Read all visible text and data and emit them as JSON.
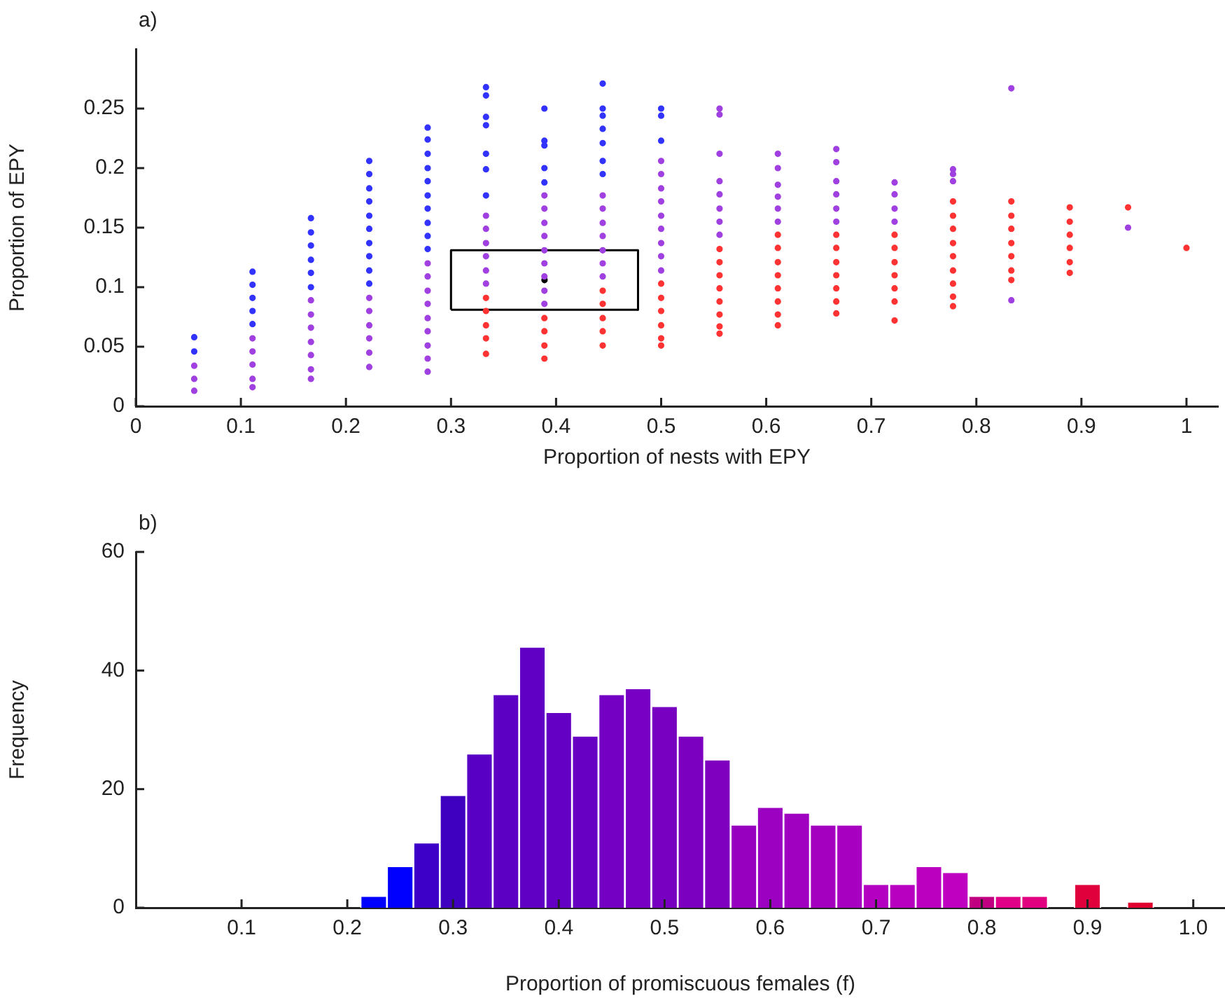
{
  "chart_data": [
    {
      "type": "scatter",
      "xlabel": "Proportion of nests with EPY",
      "ylabel": "Proportion of EPY",
      "annotations": [
        "a)"
      ],
      "xlim": [
        0,
        1.03
      ],
      "xticks": [
        0,
        0.1,
        0.2,
        0.3,
        0.4,
        0.5,
        0.6,
        0.7,
        0.8,
        0.9,
        1
      ],
      "ylim": [
        0,
        0.3
      ],
      "yticks": [
        0,
        0.05,
        0.1,
        0.15,
        0.2,
        0.25
      ],
      "grid": false,
      "legend": false,
      "marker": "circle",
      "series": [
        {
          "color": "#3333ff",
          "x": [
            0.0556,
            0.0556,
            0.1111,
            0.1111,
            0.1111,
            0.1111,
            0.1111,
            0.1667,
            0.1667,
            0.1667,
            0.1667,
            0.1667,
            0.1667,
            0.2222,
            0.2222,
            0.2222,
            0.2222,
            0.2222,
            0.2222,
            0.2222,
            0.2222,
            0.2222,
            0.2222,
            0.2778,
            0.2778,
            0.2778,
            0.2778,
            0.2778,
            0.2778,
            0.2778,
            0.2778,
            0.2778,
            0.2778,
            0.3333,
            0.3333,
            0.3333,
            0.3333,
            0.3333,
            0.3333,
            0.3333,
            0.3889,
            0.3889,
            0.3889,
            0.3889,
            0.3889,
            0.4444,
            0.4444,
            0.4444,
            0.4444,
            0.4444,
            0.4444,
            0.4444,
            0.5,
            0.5,
            0.5
          ],
          "values": [
            0.058,
            0.046,
            0.113,
            0.102,
            0.091,
            0.08,
            0.069,
            0.158,
            0.146,
            0.135,
            0.123,
            0.112,
            0.1,
            0.206,
            0.195,
            0.183,
            0.172,
            0.16,
            0.149,
            0.137,
            0.126,
            0.114,
            0.103,
            0.234,
            0.224,
            0.212,
            0.2,
            0.189,
            0.177,
            0.166,
            0.154,
            0.143,
            0.132,
            0.268,
            0.261,
            0.243,
            0.236,
            0.212,
            0.199,
            0.177,
            0.25,
            0.223,
            0.219,
            0.2,
            0.188,
            0.271,
            0.25,
            0.244,
            0.233,
            0.221,
            0.206,
            0.195,
            0.25,
            0.244,
            0.223
          ]
        },
        {
          "color": "#a040e0",
          "x": [
            0.0556,
            0.0556,
            0.0556,
            0.1111,
            0.1111,
            0.1111,
            0.1111,
            0.1111,
            0.1667,
            0.1667,
            0.1667,
            0.1667,
            0.1667,
            0.1667,
            0.1667,
            0.2222,
            0.2222,
            0.2222,
            0.2222,
            0.2222,
            0.2222,
            0.2778,
            0.2778,
            0.2778,
            0.2778,
            0.2778,
            0.2778,
            0.2778,
            0.2778,
            0.2778,
            0.3333,
            0.3333,
            0.3333,
            0.3333,
            0.3333,
            0.3333,
            0.3889,
            0.3889,
            0.3889,
            0.3889,
            0.3889,
            0.3889,
            0.3889,
            0.3889,
            0.3889,
            0.4444,
            0.4444,
            0.4444,
            0.4444,
            0.4444,
            0.4444,
            0.4444,
            0.5,
            0.5,
            0.5,
            0.5,
            0.5,
            0.5,
            0.5,
            0.5,
            0.5,
            0.5556,
            0.5556,
            0.5556,
            0.5556,
            0.5556,
            0.5556,
            0.5556,
            0.5556,
            0.6111,
            0.6111,
            0.6111,
            0.6111,
            0.6111,
            0.6111,
            0.6667,
            0.6667,
            0.6667,
            0.6667,
            0.6667,
            0.6667,
            0.7222,
            0.7222,
            0.7222,
            0.7222,
            0.7778,
            0.7778,
            0.7778,
            0.8333,
            0.8333,
            0.9444
          ],
          "values": [
            0.034,
            0.023,
            0.013,
            0.057,
            0.046,
            0.035,
            0.023,
            0.016,
            0.089,
            0.077,
            0.066,
            0.054,
            0.043,
            0.031,
            0.023,
            0.091,
            0.08,
            0.068,
            0.057,
            0.045,
            0.033,
            0.12,
            0.109,
            0.097,
            0.086,
            0.074,
            0.063,
            0.051,
            0.04,
            0.029,
            0.16,
            0.149,
            0.137,
            0.126,
            0.114,
            0.103,
            0.177,
            0.166,
            0.154,
            0.143,
            0.131,
            0.12,
            0.109,
            0.097,
            0.086,
            0.177,
            0.166,
            0.154,
            0.143,
            0.131,
            0.12,
            0.109,
            0.206,
            0.195,
            0.183,
            0.172,
            0.16,
            0.149,
            0.137,
            0.126,
            0.114,
            0.25,
            0.245,
            0.212,
            0.189,
            0.178,
            0.166,
            0.155,
            0.144,
            0.212,
            0.2,
            0.186,
            0.176,
            0.166,
            0.155,
            0.216,
            0.205,
            0.189,
            0.178,
            0.166,
            0.155,
            0.188,
            0.178,
            0.166,
            0.155,
            0.199,
            0.195,
            0.189,
            0.267,
            0.089,
            0.15
          ]
        },
        {
          "color": "#ff3333",
          "x": [
            0.3333,
            0.3333,
            0.3333,
            0.3333,
            0.3333,
            0.3889,
            0.3889,
            0.3889,
            0.3889,
            0.4444,
            0.4444,
            0.4444,
            0.4444,
            0.4444,
            0.5,
            0.5,
            0.5,
            0.5,
            0.5,
            0.5,
            0.5556,
            0.5556,
            0.5556,
            0.5556,
            0.5556,
            0.5556,
            0.5556,
            0.5556,
            0.6111,
            0.6111,
            0.6111,
            0.6111,
            0.6111,
            0.6111,
            0.6111,
            0.6111,
            0.6667,
            0.6667,
            0.6667,
            0.6667,
            0.6667,
            0.6667,
            0.6667,
            0.7222,
            0.7222,
            0.7222,
            0.7222,
            0.7222,
            0.7222,
            0.7222,
            0.7778,
            0.7778,
            0.7778,
            0.7778,
            0.7778,
            0.7778,
            0.7778,
            0.7778,
            0.7778,
            0.8333,
            0.8333,
            0.8333,
            0.8333,
            0.8333,
            0.8333,
            0.8333,
            0.8889,
            0.8889,
            0.8889,
            0.8889,
            0.8889,
            0.8889,
            0.9444,
            1
          ],
          "values": [
            0.091,
            0.08,
            0.068,
            0.057,
            0.044,
            0.074,
            0.063,
            0.051,
            0.04,
            0.097,
            0.086,
            0.074,
            0.063,
            0.051,
            0.103,
            0.091,
            0.08,
            0.068,
            0.057,
            0.051,
            0.132,
            0.121,
            0.11,
            0.099,
            0.088,
            0.077,
            0.067,
            0.061,
            0.144,
            0.133,
            0.121,
            0.11,
            0.099,
            0.088,
            0.077,
            0.068,
            0.144,
            0.133,
            0.121,
            0.11,
            0.099,
            0.088,
            0.078,
            0.144,
            0.133,
            0.121,
            0.11,
            0.099,
            0.088,
            0.072,
            0.172,
            0.16,
            0.149,
            0.137,
            0.126,
            0.114,
            0.103,
            0.092,
            0.084,
            0.172,
            0.16,
            0.149,
            0.137,
            0.126,
            0.114,
            0.106,
            0.167,
            0.155,
            0.144,
            0.133,
            0.121,
            0.112,
            0.167,
            0.133
          ]
        },
        {
          "color": "#000000",
          "x": [
            0.389
          ],
          "values": [
            0.106
          ]
        },
        {
          "type": "line",
          "color": "#000000",
          "marker": "none",
          "x": [
            0.3,
            0.3,
            0.478,
            0.478
          ],
          "values": [
            0.081,
            0.131,
            0.131,
            0.081
          ]
        },
        {
          "type": "line",
          "color": "#000000",
          "marker": "none",
          "x": [
            0.3,
            0.478
          ],
          "values": [
            0.081,
            0.081
          ]
        }
      ]
    },
    {
      "type": "histogram",
      "xlabel": "Proportion of promiscuous females (f)",
      "ylabel": "Frequency",
      "annotations": [
        "b)"
      ],
      "xlim": [
        0,
        1.03
      ],
      "xticks": [
        0.1,
        0.2,
        0.3,
        0.4,
        0.5,
        0.6,
        0.7,
        0.8,
        0.9,
        {
          "value": 1,
          "label": "1.0"
        }
      ],
      "ylim": [
        0,
        60
      ],
      "yticks": [
        0,
        20,
        40,
        60
      ],
      "grid": false,
      "legend": false,
      "bins": [
        0.2125,
        0.2375,
        0.2625,
        0.2875,
        0.3125,
        0.3375,
        0.3625,
        0.3875,
        0.4125,
        0.4375,
        0.4625,
        0.4875,
        0.5125,
        0.5375,
        0.5625,
        0.5875,
        0.6125,
        0.6375,
        0.6625,
        0.6875,
        0.7125,
        0.7375,
        0.7625,
        0.7875,
        0.8125,
        0.8375,
        0.8625,
        0.8875,
        0.9125,
        0.9375,
        0.9625
      ],
      "values": [
        2,
        7,
        11,
        19,
        26,
        36,
        44,
        33,
        29,
        36,
        37,
        34,
        29,
        25,
        14,
        17,
        16,
        14,
        14,
        4,
        4,
        7,
        6,
        2,
        2,
        2,
        0,
        4,
        0,
        1
      ],
      "colors": [
        "#0000ff",
        "#0000ff",
        "#3c00c8",
        "#4000c0",
        "#5800c4",
        "#5c00c4",
        "#6000c4",
        "#6400c4",
        "#6800c4",
        "#7400c4",
        "#7800c4",
        "#7800c0",
        "#7c00c0",
        "#8000c0",
        "#9800c0",
        "#9c00c0",
        "#a000c0",
        "#a400c0",
        "#a800c0",
        "#b400c0",
        "#b800c0",
        "#bc00c0",
        "#c000c0",
        "#c00080",
        "#e00088",
        "#e00080",
        "#e00070",
        "#e0003c",
        "#e00038",
        "#e00030"
      ]
    }
  ]
}
